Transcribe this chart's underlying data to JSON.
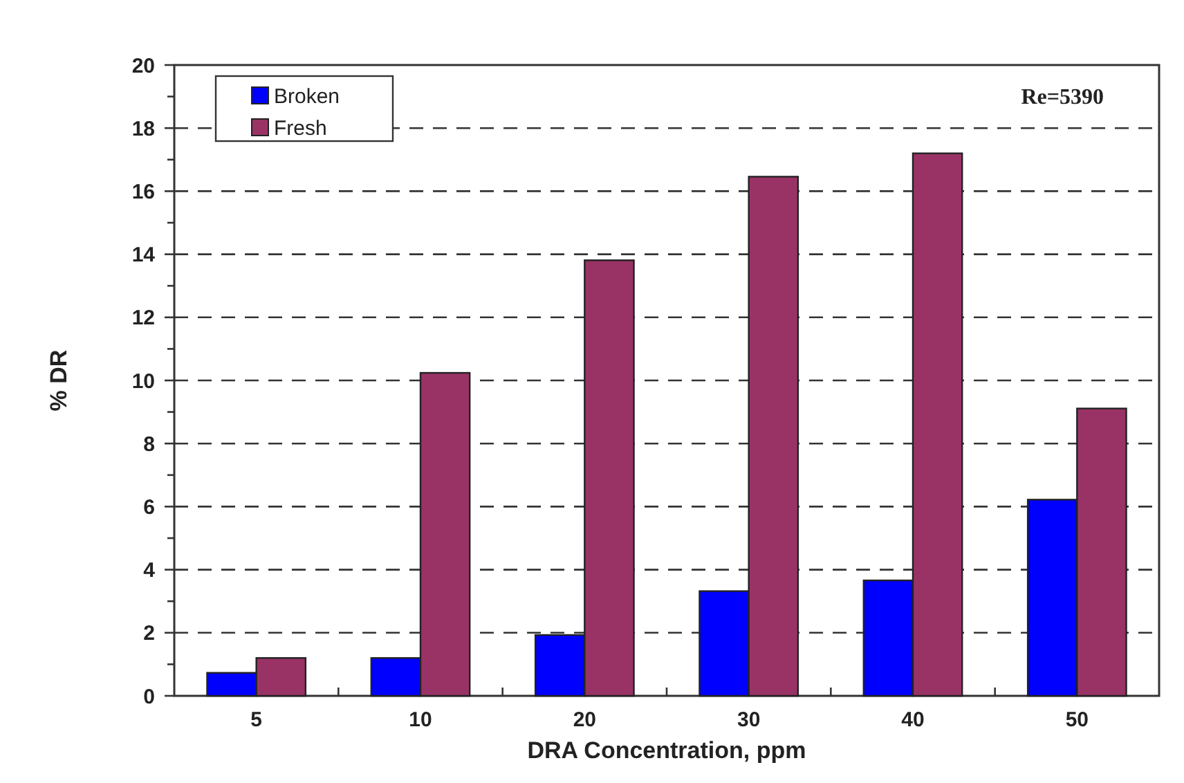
{
  "chart_data": {
    "type": "bar",
    "xlabel": "DRA Concentration, ppm",
    "ylabel": "% DR",
    "categories": [
      "5",
      "10",
      "20",
      "30",
      "40",
      "50"
    ],
    "series": [
      {
        "name": "Broken",
        "color": "#0000ff",
        "values": [
          0.73,
          1.2,
          1.93,
          3.32,
          3.66,
          6.22
        ]
      },
      {
        "name": "Fresh",
        "color": "#993366",
        "values": [
          1.2,
          10.24,
          13.81,
          16.46,
          17.2,
          9.11
        ]
      }
    ],
    "ylim": [
      0,
      20
    ],
    "yticks": [
      0,
      {
        "value": 1,
        "label": null
      },
      2,
      {
        "value": 3,
        "label": null
      },
      4,
      {
        "value": 5,
        "label": null
      },
      6,
      {
        "value": 7,
        "label": null
      },
      8,
      {
        "value": 9,
        "label": null
      },
      10,
      {
        "value": 11,
        "label": null
      },
      12,
      {
        "value": 13,
        "label": null
      },
      14,
      {
        "value": 15,
        "label": null
      },
      16,
      {
        "value": 17,
        "label": null
      },
      18,
      {
        "value": 19,
        "label": null
      },
      20
    ],
    "grid": "y",
    "legend": "top left",
    "annotations": [
      "Re=5390"
    ]
  }
}
